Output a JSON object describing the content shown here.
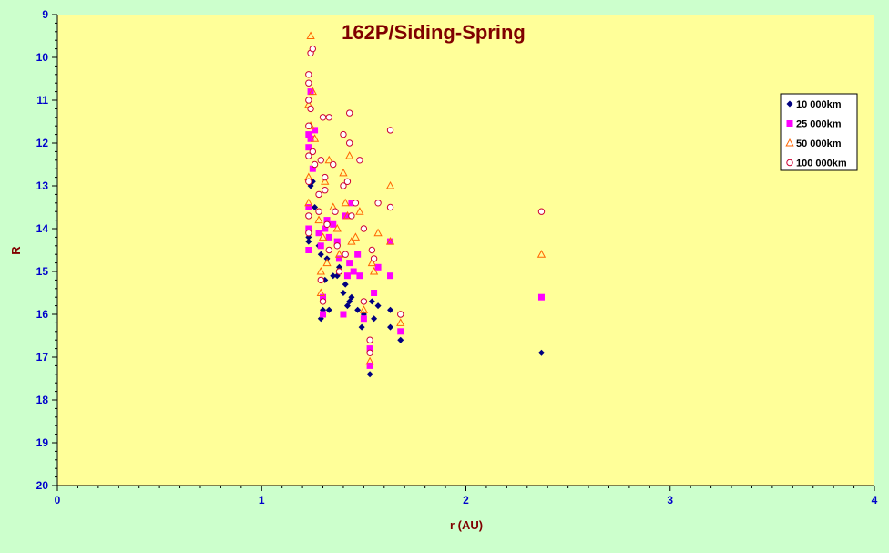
{
  "chart_data": {
    "type": "scatter",
    "title": "162P/Siding-Spring",
    "xlabel": "r (AU)",
    "ylabel": "R",
    "xlim": [
      0,
      4
    ],
    "ylim": [
      9,
      20
    ],
    "y_reversed": true,
    "x_ticks": [
      "0",
      "1",
      "2",
      "3",
      "4"
    ],
    "y_ticks": [
      "9",
      "10",
      "11",
      "12",
      "13",
      "14",
      "15",
      "16",
      "17",
      "18",
      "19",
      "20"
    ],
    "grid": false,
    "legend_position": "right",
    "colors": {
      "background": "#ccffcc",
      "plot_area": "#ffff99",
      "title": "#800000",
      "axis_label": "#800000",
      "tick_label": "#0000cc",
      "axis_line": "#000000"
    },
    "series": [
      {
        "name": "10 000km",
        "marker": "diamond",
        "color": "#000080",
        "points": [
          [
            1.23,
            14.2
          ],
          [
            1.23,
            14.3
          ],
          [
            1.24,
            13.0
          ],
          [
            1.25,
            12.9
          ],
          [
            1.26,
            13.5
          ],
          [
            1.28,
            14.4
          ],
          [
            1.29,
            14.6
          ],
          [
            1.29,
            16.1
          ],
          [
            1.3,
            15.9
          ],
          [
            1.31,
            15.2
          ],
          [
            1.32,
            14.7
          ],
          [
            1.33,
            15.9
          ],
          [
            1.35,
            15.1
          ],
          [
            1.37,
            15.1
          ],
          [
            1.38,
            14.9
          ],
          [
            1.4,
            15.5
          ],
          [
            1.41,
            15.3
          ],
          [
            1.42,
            15.8
          ],
          [
            1.43,
            15.7
          ],
          [
            1.44,
            15.6
          ],
          [
            1.47,
            15.9
          ],
          [
            1.49,
            16.3
          ],
          [
            1.5,
            16.0
          ],
          [
            1.53,
            17.4
          ],
          [
            1.54,
            15.7
          ],
          [
            1.55,
            16.1
          ],
          [
            1.57,
            15.8
          ],
          [
            1.63,
            15.9
          ],
          [
            1.63,
            16.3
          ],
          [
            1.68,
            16.6
          ],
          [
            2.37,
            16.9
          ]
        ]
      },
      {
        "name": "25 000km",
        "marker": "square",
        "color": "#ff00ff",
        "points": [
          [
            1.23,
            11.8
          ],
          [
            1.23,
            12.1
          ],
          [
            1.23,
            13.5
          ],
          [
            1.23,
            14.0
          ],
          [
            1.23,
            14.5
          ],
          [
            1.24,
            10.8
          ],
          [
            1.24,
            11.9
          ],
          [
            1.25,
            12.6
          ],
          [
            1.26,
            11.7
          ],
          [
            1.28,
            14.1
          ],
          [
            1.29,
            14.4
          ],
          [
            1.3,
            15.6
          ],
          [
            1.3,
            16.0
          ],
          [
            1.31,
            14.0
          ],
          [
            1.32,
            13.8
          ],
          [
            1.33,
            14.2
          ],
          [
            1.35,
            13.9
          ],
          [
            1.37,
            14.3
          ],
          [
            1.38,
            14.7
          ],
          [
            1.4,
            16.0
          ],
          [
            1.41,
            13.7
          ],
          [
            1.42,
            15.1
          ],
          [
            1.43,
            14.8
          ],
          [
            1.44,
            13.4
          ],
          [
            1.45,
            15.0
          ],
          [
            1.47,
            14.6
          ],
          [
            1.48,
            15.1
          ],
          [
            1.5,
            16.1
          ],
          [
            1.53,
            17.2
          ],
          [
            1.53,
            16.8
          ],
          [
            1.55,
            15.5
          ],
          [
            1.57,
            14.9
          ],
          [
            1.63,
            14.3
          ],
          [
            1.63,
            15.1
          ],
          [
            1.68,
            16.4
          ],
          [
            2.37,
            15.6
          ]
        ]
      },
      {
        "name": "50 000km",
        "marker": "triangle",
        "color": "#ff6600",
        "points": [
          [
            1.23,
            11.1
          ],
          [
            1.23,
            12.8
          ],
          [
            1.23,
            13.4
          ],
          [
            1.24,
            9.5
          ],
          [
            1.24,
            11.6
          ],
          [
            1.25,
            10.8
          ],
          [
            1.26,
            11.9
          ],
          [
            1.28,
            13.8
          ],
          [
            1.29,
            15.0
          ],
          [
            1.29,
            15.5
          ],
          [
            1.3,
            14.2
          ],
          [
            1.31,
            12.9
          ],
          [
            1.32,
            14.8
          ],
          [
            1.33,
            12.4
          ],
          [
            1.35,
            13.5
          ],
          [
            1.37,
            14.0
          ],
          [
            1.38,
            14.6
          ],
          [
            1.4,
            12.7
          ],
          [
            1.41,
            13.4
          ],
          [
            1.42,
            13.7
          ],
          [
            1.43,
            12.3
          ],
          [
            1.44,
            14.3
          ],
          [
            1.46,
            14.2
          ],
          [
            1.48,
            13.6
          ],
          [
            1.5,
            15.9
          ],
          [
            1.53,
            17.1
          ],
          [
            1.54,
            14.8
          ],
          [
            1.55,
            15.0
          ],
          [
            1.57,
            14.1
          ],
          [
            1.63,
            13.0
          ],
          [
            1.63,
            14.3
          ],
          [
            1.68,
            16.2
          ],
          [
            2.37,
            14.6
          ]
        ]
      },
      {
        "name": "100 000km",
        "marker": "circle",
        "color": "#cc0033",
        "points": [
          [
            1.23,
            10.4
          ],
          [
            1.23,
            10.6
          ],
          [
            1.23,
            11.0
          ],
          [
            1.23,
            11.6
          ],
          [
            1.23,
            12.3
          ],
          [
            1.23,
            12.9
          ],
          [
            1.23,
            13.7
          ],
          [
            1.23,
            14.1
          ],
          [
            1.24,
            9.9
          ],
          [
            1.24,
            11.2
          ],
          [
            1.25,
            9.8
          ],
          [
            1.25,
            12.2
          ],
          [
            1.26,
            12.5
          ],
          [
            1.28,
            13.2
          ],
          [
            1.28,
            13.6
          ],
          [
            1.29,
            12.4
          ],
          [
            1.29,
            15.2
          ],
          [
            1.3,
            11.4
          ],
          [
            1.3,
            15.7
          ],
          [
            1.31,
            13.1
          ],
          [
            1.31,
            12.8
          ],
          [
            1.32,
            13.9
          ],
          [
            1.33,
            11.4
          ],
          [
            1.33,
            14.5
          ],
          [
            1.35,
            12.5
          ],
          [
            1.36,
            13.6
          ],
          [
            1.37,
            14.4
          ],
          [
            1.38,
            15.0
          ],
          [
            1.4,
            11.8
          ],
          [
            1.4,
            13.0
          ],
          [
            1.41,
            14.6
          ],
          [
            1.42,
            12.9
          ],
          [
            1.43,
            11.3
          ],
          [
            1.43,
            12.0
          ],
          [
            1.44,
            13.7
          ],
          [
            1.46,
            13.4
          ],
          [
            1.48,
            12.4
          ],
          [
            1.5,
            14.0
          ],
          [
            1.5,
            15.7
          ],
          [
            1.53,
            16.6
          ],
          [
            1.53,
            16.9
          ],
          [
            1.54,
            14.5
          ],
          [
            1.55,
            14.7
          ],
          [
            1.57,
            13.4
          ],
          [
            1.63,
            11.7
          ],
          [
            1.63,
            13.5
          ],
          [
            1.68,
            16.0
          ],
          [
            2.37,
            13.6
          ]
        ]
      }
    ]
  }
}
